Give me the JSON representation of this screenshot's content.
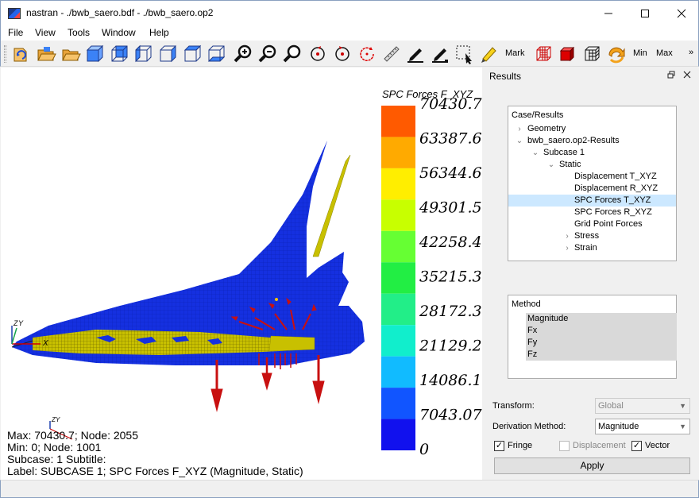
{
  "window": {
    "title": "nastran - ./bwb_saero.bdf - ./bwb_saero.op2",
    "min_icon": "minimize-icon",
    "max_icon": "maximize-icon",
    "close_icon": "close-icon"
  },
  "menu": [
    "File",
    "View",
    "Tools",
    "Window",
    "Help"
  ],
  "toolbar": {
    "icons": [
      "reload-icon",
      "open-folder-icon",
      "open-folder-icon",
      "front-view-icon",
      "back-view-icon",
      "left-view-icon",
      "right-view-icon",
      "top-view-icon",
      "bottom-view-icon",
      "zoom-in-icon",
      "zoom-out-icon",
      "zoom-icon",
      "rotate-cw-icon",
      "rotate-ccw-icon",
      "rotate-icon",
      "ruler-icon",
      "pencil-icon",
      "eraser-icon",
      "area-pick-icon",
      "highlighter-icon"
    ],
    "mark_label": "Mark",
    "min_label": "Min",
    "max_label": "Max",
    "more": "»"
  },
  "viewport": {
    "legend_title": "SPC Forces F_XYZ",
    "legend_values": [
      "70430.7",
      "63387.6",
      "56344.6",
      "49301.5",
      "42258.4",
      "35215.3",
      "28172.3",
      "21129.2",
      "14086.1",
      "7043.07",
      "0"
    ],
    "legend_colors": [
      "#ff5a00",
      "#ffaa00",
      "#ffee00",
      "#c8ff00",
      "#66ff33",
      "#22ee44",
      "#22ee88",
      "#11eecc",
      "#11bbff",
      "#1155ff",
      "#1111ee"
    ],
    "axis_labels": {
      "x": "X",
      "y": "Y",
      "z": "Z"
    },
    "info_lines": [
      "Max:  70430.7; Node: 2055",
      "Min:  0; Node: 1001",
      "Subcase: 1 Subtitle:",
      "Label: SUBCASE 1; SPC Forces F_XYZ (Magnitude, Static)"
    ],
    "model_colors": {
      "body": "#1530e0",
      "yellow": "#c8c000",
      "arrows": "#c81010"
    }
  },
  "panel": {
    "title": "Results",
    "float_icon": "float-icon",
    "close_icon": "close-icon",
    "tree_header": "Case/Results",
    "tree": [
      {
        "label": "Geometry",
        "indent": 0,
        "arrow": ">"
      },
      {
        "label": "bwb_saero.op2-Results",
        "indent": 0,
        "arrow": "v"
      },
      {
        "label": "Subcase 1",
        "indent": 1,
        "arrow": "v"
      },
      {
        "label": "Static",
        "indent": 2,
        "arrow": "v"
      },
      {
        "label": "Displacement T_XYZ",
        "indent": 3,
        "arrow": ""
      },
      {
        "label": "Displacement R_XYZ",
        "indent": 3,
        "arrow": ""
      },
      {
        "label": "SPC Forces T_XYZ",
        "indent": 3,
        "arrow": "",
        "selected": true
      },
      {
        "label": "SPC Forces R_XYZ",
        "indent": 3,
        "arrow": ""
      },
      {
        "label": "Grid Point Forces",
        "indent": 3,
        "arrow": ""
      },
      {
        "label": "Stress",
        "indent": 3,
        "arrow": ">"
      },
      {
        "label": "Strain",
        "indent": 3,
        "arrow": ">"
      }
    ],
    "method_header": "Method",
    "methods": [
      "Magnitude",
      "Fx",
      "Fy",
      "Fz"
    ],
    "transform_label": "Transform:",
    "transform_value": "Global",
    "derivation_label": "Derivation Method:",
    "derivation_value": "Magnitude",
    "fringe_label": "Fringe",
    "fringe_checked": true,
    "displacement_label": "Displacement",
    "displacement_checked": false,
    "vector_label": "Vector",
    "vector_checked": true,
    "apply_label": "Apply"
  }
}
